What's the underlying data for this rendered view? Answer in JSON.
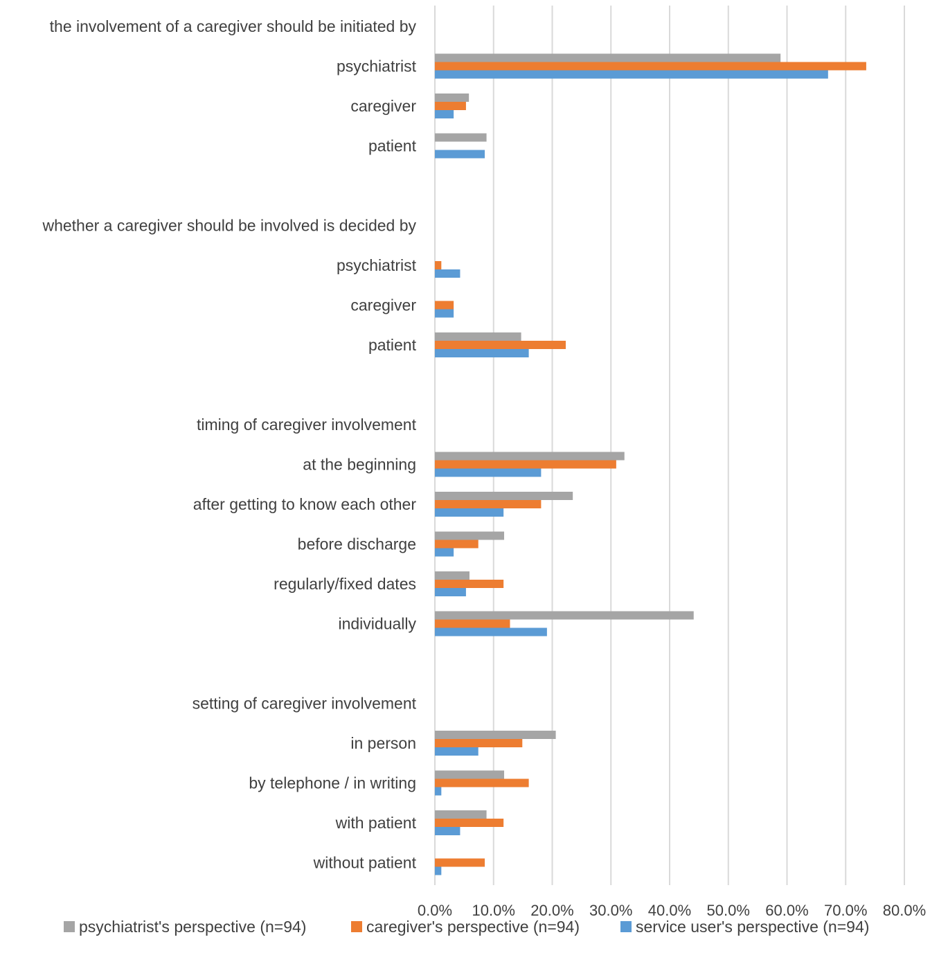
{
  "chart_data": {
    "type": "bar",
    "orientation": "horizontal",
    "xlim": [
      0,
      80
    ],
    "tick_unit": "%",
    "ticks": [
      "0.0%",
      "10.0%",
      "20.0%",
      "30.0%",
      "40.0%",
      "50.0%",
      "60.0%",
      "70.0%",
      "80.0%"
    ],
    "grid": true,
    "legend_position": "bottom",
    "categories": [
      {
        "label": "the involvement of a caregiver should be initiated by",
        "heading": true
      },
      {
        "label": "psychiatrist"
      },
      {
        "label": "caregiver"
      },
      {
        "label": "patient"
      },
      {
        "label": "",
        "spacer": true
      },
      {
        "label": "whether a caregiver should be involved is decided by",
        "heading": true
      },
      {
        "label": "psychiatrist"
      },
      {
        "label": "caregiver"
      },
      {
        "label": "patient"
      },
      {
        "label": "",
        "spacer": true
      },
      {
        "label": "timing of caregiver involvement",
        "heading": true
      },
      {
        "label": "at the beginning"
      },
      {
        "label": "after getting to know each other"
      },
      {
        "label": "before discharge"
      },
      {
        "label": "regularly/fixed dates"
      },
      {
        "label": "individually"
      },
      {
        "label": "",
        "spacer": true
      },
      {
        "label": "setting of caregiver involvement",
        "heading": true
      },
      {
        "label": "in person"
      },
      {
        "label": "by telephone / in writing"
      },
      {
        "label": "with patient"
      },
      {
        "label": "without patient"
      }
    ],
    "series": [
      {
        "name": "psychiatrist's perspective (n=94)",
        "color": "#a5a5a5",
        "values": [
          null,
          58.9,
          5.8,
          8.8,
          null,
          null,
          null,
          null,
          14.7,
          null,
          null,
          32.3,
          23.5,
          11.8,
          5.9,
          44.1,
          null,
          null,
          20.6,
          11.8,
          8.8,
          null
        ]
      },
      {
        "name": "caregiver's perspective (n=94)",
        "color": "#ed7d31",
        "values": [
          null,
          73.5,
          5.3,
          null,
          null,
          null,
          1.1,
          3.2,
          22.3,
          null,
          null,
          30.9,
          18.1,
          7.4,
          11.7,
          12.8,
          null,
          null,
          14.9,
          16.0,
          11.7,
          8.5
        ]
      },
      {
        "name": "service user's perspective (n=94)",
        "color": "#5b9bd5",
        "values": [
          null,
          67.0,
          3.2,
          8.5,
          null,
          null,
          4.3,
          3.2,
          16.0,
          null,
          null,
          18.1,
          11.7,
          3.2,
          5.3,
          19.1,
          null,
          null,
          7.4,
          1.1,
          4.3,
          1.1
        ]
      }
    ]
  }
}
